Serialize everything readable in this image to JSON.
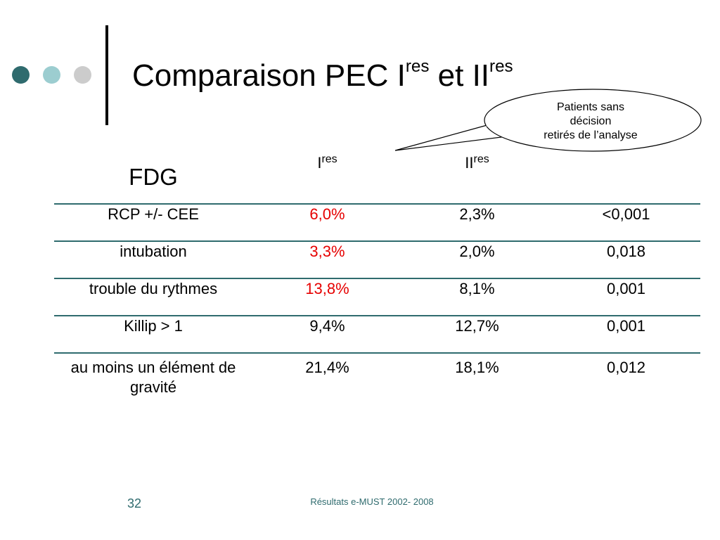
{
  "slide": {
    "title": "Comparaison PEC I",
    "title_sup1": "res",
    "title_mid": " et II",
    "title_sup2": "res",
    "dot_colors": [
      "#2f6b6e",
      "#9ccdd0",
      "#cccccc"
    ],
    "page_number": "32",
    "footer": "Résultats e-MUST 2002- 2008"
  },
  "callout": {
    "line1": "Patients sans",
    "line2": "décision",
    "line3": "retirés de l’analyse"
  },
  "table": {
    "head": {
      "label": "FDG",
      "col1": "I",
      "col1_sup": "res",
      "col2": "II",
      "col2_sup": "res",
      "col3": ""
    },
    "rows": [
      {
        "label": "RCP +/- CEE",
        "v1": "6,0%",
        "v2": "2,3%",
        "p": "<0,001",
        "v1_red": true
      },
      {
        "label": "intubation",
        "v1": "3,3%",
        "v2": "2,0%",
        "p": "0,018",
        "v1_red": true
      },
      {
        "label": "trouble du rythmes",
        "v1": "13,8%",
        "v2": "8,1%",
        "p": "0,001",
        "v1_red": true
      },
      {
        "label": "Killip > 1",
        "v1": "9,4%",
        "v2": "12,7%",
        "p": "0,001",
        "v1_red": false
      },
      {
        "label": "au moins un élément de gravité",
        "v1": "21,4%",
        "v2": "18,1%",
        "p": "0,012",
        "v1_red": false
      }
    ],
    "highlight_color": "#e60000",
    "rule_color": "#2f6b6e"
  }
}
